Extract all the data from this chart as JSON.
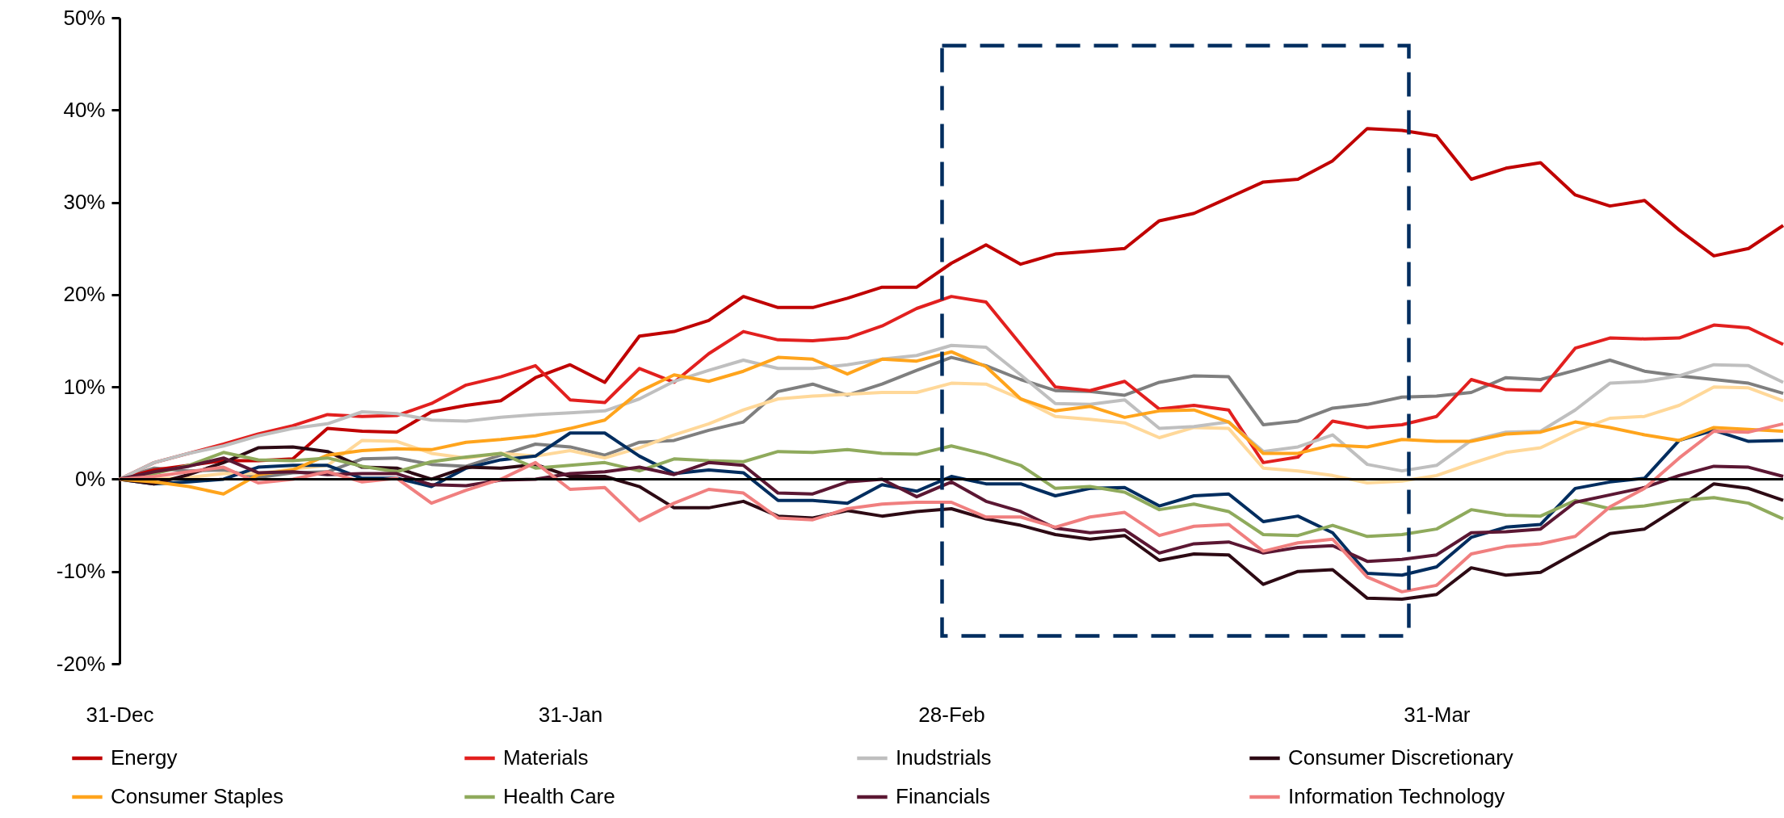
{
  "chart_data": {
    "type": "line",
    "legend": "bottom",
    "categories": [
      "31-Dec",
      null,
      null,
      null,
      null,
      null,
      null,
      null,
      null,
      null,
      null,
      null,
      null,
      "31-Jan",
      null,
      null,
      null,
      null,
      null,
      null,
      null,
      null,
      null,
      null,
      "28-Feb",
      null,
      null,
      null,
      null,
      null,
      null,
      null,
      null,
      null,
      null,
      null,
      null,
      null,
      "31-Mar",
      null,
      null,
      null,
      null,
      null,
      null,
      null,
      null,
      null,
      null
    ],
    "ylim": [
      -20,
      50
    ],
    "yticks": [
      {
        "value": -20,
        "label": "-20%"
      },
      {
        "value": -10,
        "label": "-10%"
      },
      {
        "value": 0,
        "label": "0%"
      },
      {
        "value": 10,
        "label": "10%"
      },
      {
        "value": 20,
        "label": "20%"
      },
      {
        "value": 30,
        "label": "30%"
      },
      {
        "value": 40,
        "label": "40%"
      },
      {
        "value": 50,
        "label": "50%"
      }
    ],
    "ref_lines": [
      {
        "axis": "y",
        "value": 0,
        "color": "#000000"
      }
    ],
    "series": [
      {
        "color": "#7f7f7f",
        "values": [
          0,
          1.2,
          0.9,
          1,
          0.2,
          0.7,
          0.8,
          2.2,
          2.3,
          1.6,
          1.4,
          2.6,
          3.8,
          3.5,
          2.6,
          4,
          4.2,
          5.3,
          6.2,
          9.5,
          10.3,
          9.1,
          10.3,
          11.8,
          13.2,
          12.3,
          10.8,
          9.6,
          9.5,
          9.1,
          10.5,
          11.2,
          11.1,
          5.9,
          6.3,
          7.7,
          8.1,
          8.9,
          9,
          9.4,
          11,
          10.8,
          11.8,
          12.9,
          11.7,
          11.2,
          10.8,
          10.4,
          9.3
        ]
      },
      {
        "color": "#ffd899",
        "values": [
          0,
          0,
          0.2,
          0.6,
          0.6,
          1.1,
          1.5,
          4.2,
          4.1,
          2.8,
          2.3,
          2.8,
          2.5,
          3.1,
          2.3,
          3.4,
          4.8,
          6,
          7.5,
          8.7,
          9,
          9.2,
          9.4,
          9.4,
          10.4,
          10.3,
          8.7,
          6.8,
          6.5,
          6.1,
          4.5,
          5.6,
          5.5,
          1.2,
          0.9,
          0.4,
          -0.4,
          -0.2,
          0.4,
          1.7,
          2.9,
          3.4,
          5.2,
          6.6,
          6.8,
          8,
          10,
          9.9,
          8.5
        ]
      },
      {
        "color": "#002d5f",
        "values": [
          0,
          -0.5,
          -0.3,
          0,
          1.3,
          1.5,
          1.5,
          0.1,
          0.1,
          -0.8,
          1.2,
          2.1,
          2.5,
          5,
          5,
          2.5,
          0.6,
          1,
          0.7,
          -2.3,
          -2.3,
          -2.6,
          -0.6,
          -1.3,
          0.3,
          -0.5,
          -0.5,
          -1.8,
          -1,
          -0.9,
          -2.9,
          -1.8,
          -1.6,
          -4.6,
          -4,
          -5.8,
          -10.2,
          -10.4,
          -9.5,
          -6.3,
          -5.2,
          -4.9,
          -1,
          -0.3,
          0.1,
          4.2,
          5.3,
          4.1,
          4.2
        ]
      },
      {
        "name": "Energy",
        "color": "#c00000",
        "values": [
          0,
          1,
          1.5,
          2,
          2,
          2.2,
          5.5,
          5.2,
          5.1,
          7.3,
          8,
          8.5,
          11,
          12.4,
          10.5,
          15.5,
          16,
          17.2,
          19.8,
          18.6,
          18.6,
          19.6,
          20.8,
          20.8,
          23.4,
          25.4,
          23.3,
          24.4,
          24.7,
          25,
          28,
          28.8,
          30.5,
          32.2,
          32.5,
          34.5,
          38,
          37.8,
          37.2,
          32.5,
          33.7,
          34.3,
          30.8,
          29.6,
          30.2,
          27,
          24.2,
          25,
          27.5
        ]
      },
      {
        "name": "Materials",
        "color": "#e2201f",
        "values": [
          0,
          1.8,
          2.8,
          3.8,
          4.9,
          5.8,
          7,
          6.8,
          6.9,
          8.2,
          10.2,
          11.1,
          12.3,
          8.6,
          8.3,
          12,
          10.5,
          13.6,
          16,
          15.1,
          15,
          15.3,
          16.6,
          18.5,
          19.8,
          19.2,
          14.6,
          10,
          9.6,
          10.6,
          7.6,
          8,
          7.5,
          1.8,
          2.4,
          6.3,
          5.6,
          5.9,
          6.8,
          10.8,
          9.7,
          9.6,
          14.2,
          15.3,
          15.2,
          15.3,
          16.7,
          16.4,
          14.6
        ]
      },
      {
        "name": "Inudstrials",
        "color": "#bfbfbf",
        "values": [
          0,
          1.8,
          2.8,
          3.6,
          4.7,
          5.5,
          6,
          7.3,
          7.1,
          6.4,
          6.3,
          6.7,
          7,
          7.2,
          7.4,
          8.7,
          10.6,
          11.8,
          12.9,
          12,
          12,
          12.4,
          13,
          13.4,
          14.5,
          14.3,
          11.3,
          8.2,
          8.1,
          8.6,
          5.5,
          5.7,
          6.2,
          3,
          3.5,
          4.8,
          1.6,
          0.9,
          1.5,
          4.2,
          5.1,
          5.2,
          7.5,
          10.4,
          10.6,
          11.2,
          12.4,
          12.3,
          10.5
        ]
      },
      {
        "name": "Consumer Discretionary",
        "color": "#2d0a14",
        "values": [
          0,
          -0.5,
          0.5,
          1.8,
          3.4,
          3.5,
          3,
          1.3,
          1.2,
          0,
          1.3,
          1.2,
          1.6,
          0.3,
          0.3,
          -0.8,
          -3.1,
          -3.1,
          -2.4,
          -4,
          -4.2,
          -3.4,
          -4,
          -3.5,
          -3.2,
          -4.3,
          -5,
          -6,
          -6.5,
          -6.1,
          -8.8,
          -8.1,
          -8.2,
          -11.4,
          -10,
          -9.8,
          -12.9,
          -13,
          -12.5,
          -9.6,
          -10.4,
          -10.1,
          -8,
          -5.9,
          -5.4,
          -3,
          -0.5,
          -1,
          -2.3
        ]
      },
      {
        "name": "Consumer Staples",
        "color": "#ffa41c",
        "values": [
          0,
          -0.3,
          -0.8,
          -1.6,
          0.5,
          1,
          2.6,
          3.1,
          3.3,
          3.2,
          4,
          4.3,
          4.7,
          5.5,
          6.4,
          9.5,
          11.3,
          10.6,
          11.7,
          13.2,
          13,
          11.4,
          13,
          12.8,
          13.8,
          12.2,
          8.7,
          7.4,
          7.9,
          6.7,
          7.4,
          7.5,
          6.2,
          2.8,
          2.8,
          3.7,
          3.5,
          4.3,
          4.1,
          4.1,
          4.9,
          5.1,
          6.2,
          5.6,
          4.8,
          4.2,
          5.6,
          5.4,
          5.2
        ]
      },
      {
        "name": "Health Care",
        "color": "#8faa5c",
        "values": [
          0,
          0.6,
          1.5,
          2.9,
          2.1,
          2,
          2.3,
          1.4,
          0.8,
          1.9,
          2.4,
          2.8,
          1.2,
          1.5,
          1.8,
          0.9,
          2.2,
          2,
          1.9,
          3,
          2.9,
          3.2,
          2.8,
          2.7,
          3.6,
          2.7,
          1.5,
          -1,
          -0.8,
          -1.4,
          -3.3,
          -2.7,
          -3.5,
          -6,
          -6.1,
          -5,
          -6.2,
          -6,
          -5.4,
          -3.3,
          -3.9,
          -4,
          -2.3,
          -3.2,
          -2.9,
          -2.3,
          -2,
          -2.6,
          -4.3
        ]
      },
      {
        "name": "Financials",
        "color": "#5b1733",
        "values": [
          0,
          0.8,
          1.4,
          2.3,
          0.7,
          0.8,
          0.5,
          0.6,
          0.6,
          -0.6,
          -0.7,
          -0.1,
          0,
          0.6,
          0.8,
          1.3,
          0.5,
          1.8,
          1.5,
          -1.5,
          -1.6,
          -0.3,
          0,
          -1.9,
          -0.3,
          -2.4,
          -3.5,
          -5.3,
          -5.8,
          -5.5,
          -8,
          -7,
          -6.8,
          -8,
          -7.4,
          -7.2,
          -8.9,
          -8.7,
          -8.2,
          -5.8,
          -5.7,
          -5.4,
          -2.5,
          -1.7,
          -0.9,
          0.4,
          1.4,
          1.3,
          0.3
        ]
      },
      {
        "name": "Information Technology",
        "color": "#f07f7f",
        "values": [
          0,
          0.3,
          0.8,
          1.3,
          -0.4,
          0,
          0.8,
          -0.3,
          0.1,
          -2.6,
          -1.2,
          0,
          1.8,
          -1.1,
          -0.9,
          -4.5,
          -2.6,
          -1.1,
          -1.5,
          -4.2,
          -4.4,
          -3.2,
          -2.7,
          -2.5,
          -2.5,
          -4.1,
          -4.1,
          -5.2,
          -4.1,
          -3.6,
          -6.1,
          -5.1,
          -4.9,
          -7.8,
          -6.9,
          -6.5,
          -10.6,
          -12.2,
          -11.5,
          -8.1,
          -7.3,
          -7,
          -6.2,
          -3,
          -1,
          2.3,
          5.2,
          5.1,
          6
        ]
      }
    ]
  }
}
